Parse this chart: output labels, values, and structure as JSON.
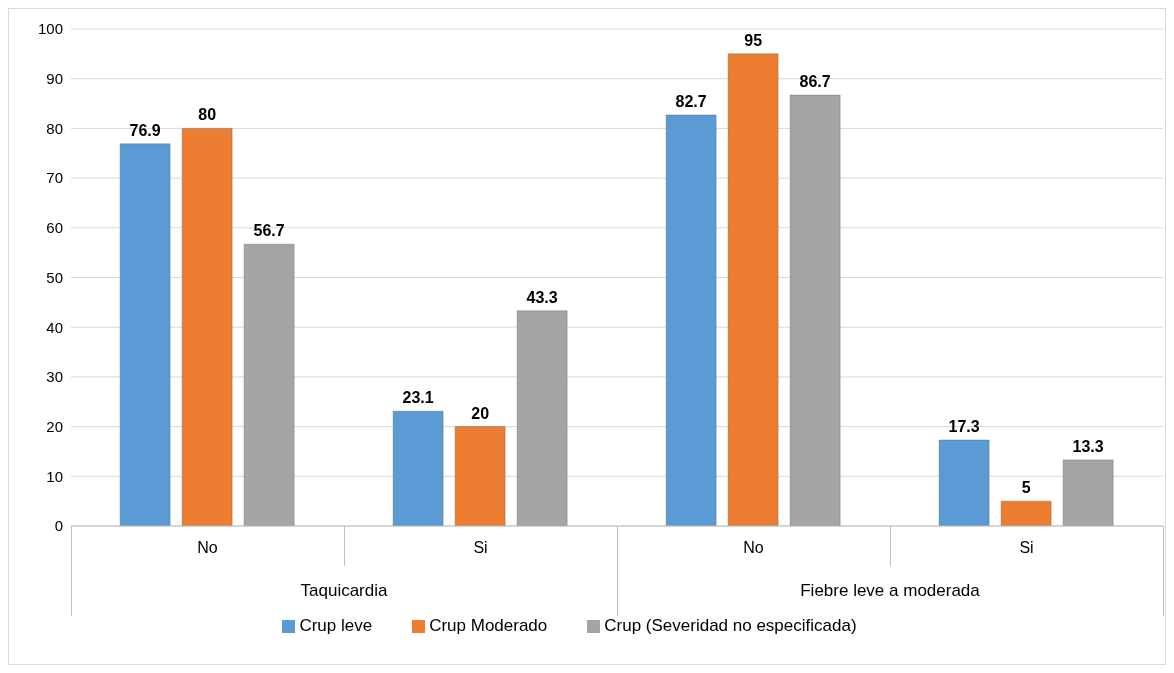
{
  "chart_data": {
    "type": "bar",
    "categories": [
      "No",
      "Si",
      "No",
      "Si"
    ],
    "series": [
      {
        "name": "Crup leve",
        "color": "#5b9bd5",
        "values": [
          76.9,
          23.1,
          82.7,
          17.3
        ]
      },
      {
        "name": "Crup Moderado",
        "color": "#ed7d31",
        "values": [
          80,
          20,
          95,
          5
        ]
      },
      {
        "name": "Crup (Severidad no especificada)",
        "color": "#a5a5a5",
        "values": [
          56.7,
          43.3,
          86.7,
          13.3
        ]
      }
    ],
    "annotations": [
      "Taquicardia",
      "Fiebre leve a moderada"
    ],
    "ylim": [
      0,
      100
    ],
    "yticks": [
      0,
      10,
      20,
      30,
      40,
      50,
      60,
      70,
      80,
      90,
      100
    ],
    "grid": "y",
    "legend": "bottom",
    "data_labels": true
  }
}
